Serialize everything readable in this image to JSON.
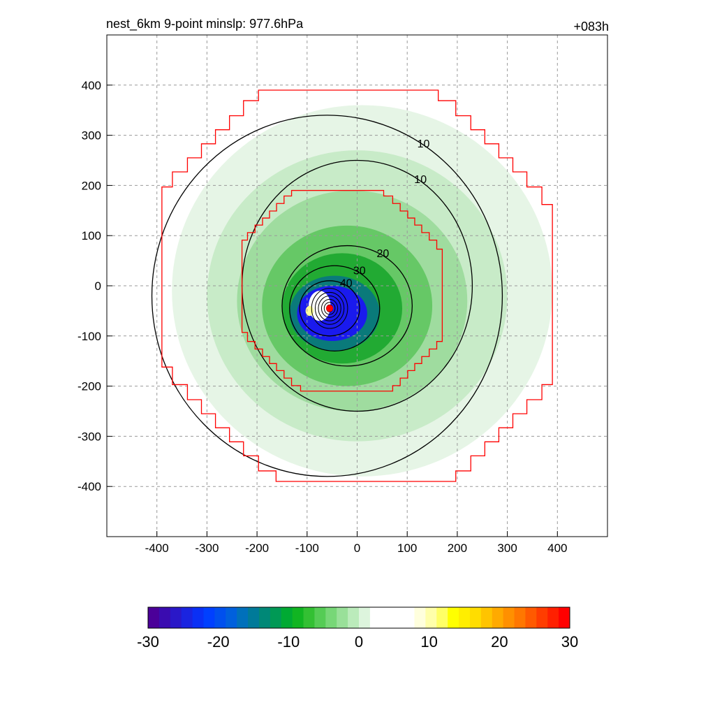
{
  "chart_data": {
    "type": "heatmap",
    "title": "nest_6km  9-point minslp: 977.6hPa",
    "subtitle": "+083h",
    "xlabel": "",
    "ylabel": "",
    "xlim": [
      -500,
      500
    ],
    "ylim": [
      -500,
      500
    ],
    "xticks": [
      -400,
      -300,
      -200,
      -100,
      0,
      100,
      200,
      300,
      400
    ],
    "yticks": [
      400,
      300,
      200,
      100,
      0,
      -100,
      -200,
      -300,
      -400
    ],
    "grid": true,
    "grid_style": "dashed",
    "storm_center": [
      -55,
      -45
    ],
    "center_color": "#ff0000",
    "shading_bands": [
      {
        "rx": 380,
        "ry": 370,
        "cx": 10,
        "cy": -10,
        "color": "#e6f5e6"
      },
      {
        "rx": 300,
        "ry": 290,
        "cx": 0,
        "cy": -20,
        "color": "#c8ebc8"
      },
      {
        "rx": 230,
        "ry": 220,
        "cx": -10,
        "cy": -30,
        "color": "#9fdc9f"
      },
      {
        "rx": 170,
        "ry": 160,
        "cx": -20,
        "cy": -40,
        "color": "#66c866"
      },
      {
        "rx": 120,
        "ry": 110,
        "cx": -30,
        "cy": -45,
        "color": "#22aa33"
      },
      {
        "rx": 90,
        "ry": 75,
        "cx": -45,
        "cy": -55,
        "color": "#0a7a7a"
      },
      {
        "rx": 70,
        "ry": 55,
        "cx": -50,
        "cy": -55,
        "color": "#1a1aee"
      }
    ],
    "contours": [
      {
        "level": 10,
        "rx": 350,
        "ry": 360,
        "cx": -60,
        "cy": -20,
        "label": "10"
      },
      {
        "level": 10,
        "rx": 230,
        "ry": 250,
        "cx": 0,
        "cy": 0,
        "label": "10"
      },
      {
        "level": 20,
        "rx": 130,
        "ry": 120,
        "cx": -20,
        "cy": -40,
        "label": "20"
      },
      {
        "level": 30,
        "rx": 90,
        "ry": 85,
        "cx": -45,
        "cy": -45,
        "label": "30"
      },
      {
        "level": 40,
        "rx": 60,
        "ry": 55,
        "cx": -55,
        "cy": -45,
        "label": "40"
      }
    ],
    "inner_contour_rings": [
      40,
      32,
      25,
      18,
      12,
      7
    ],
    "red_boxes": [
      {
        "half_width": 390,
        "color": "#ff0000"
      },
      {
        "half_width": 200,
        "center": [
          -30,
          -10
        ],
        "color": "#ff0000"
      }
    ],
    "colorbar": {
      "min": -30,
      "max": 30,
      "ticks": [
        -30,
        -20,
        -10,
        0,
        10,
        20,
        30
      ],
      "colors": [
        "#4b0099",
        "#3a0cb0",
        "#2a18c8",
        "#1a24e0",
        "#0a30f5",
        "#0040ff",
        "#0050ee",
        "#0060dd",
        "#0070bb",
        "#007a99",
        "#008877",
        "#009955",
        "#00aa33",
        "#11b522",
        "#33c033",
        "#55cc55",
        "#77d777",
        "#99e099",
        "#bbebbb",
        "#ddf5dd",
        "#ffffff",
        "#ffffff",
        "#ffffff",
        "#ffffff",
        "#ffffdd",
        "#ffffaa",
        "#ffff66",
        "#ffff00",
        "#ffee00",
        "#ffdd00",
        "#ffc400",
        "#ffaa00",
        "#ff9000",
        "#ff7700",
        "#ff5a00",
        "#ff3d00",
        "#ff2000",
        "#ff0000"
      ]
    }
  }
}
